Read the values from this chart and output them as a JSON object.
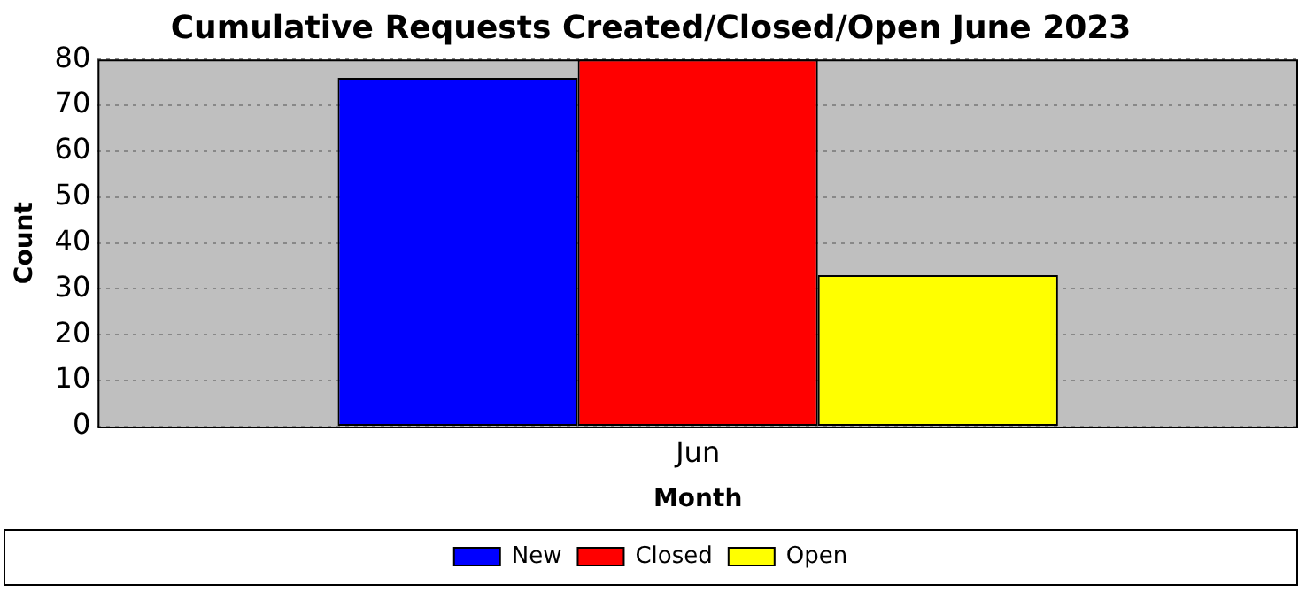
{
  "chart_data": {
    "type": "bar",
    "title": "Cumulative Requests Created/Closed/Open June 2023",
    "xlabel": "Month",
    "ylabel": "Count",
    "categories": [
      "Jun"
    ],
    "series": [
      {
        "name": "New",
        "color": "#0000ff",
        "values": [
          76
        ]
      },
      {
        "name": "Closed",
        "color": "#ff0000",
        "values": [
          80
        ]
      },
      {
        "name": "Open",
        "color": "#ffff00",
        "values": [
          33
        ]
      }
    ],
    "ylim": [
      0,
      80
    ],
    "yticks": [
      0,
      10,
      20,
      30,
      40,
      50,
      60,
      70,
      80
    ],
    "grid": "y",
    "legend": "bottom"
  }
}
